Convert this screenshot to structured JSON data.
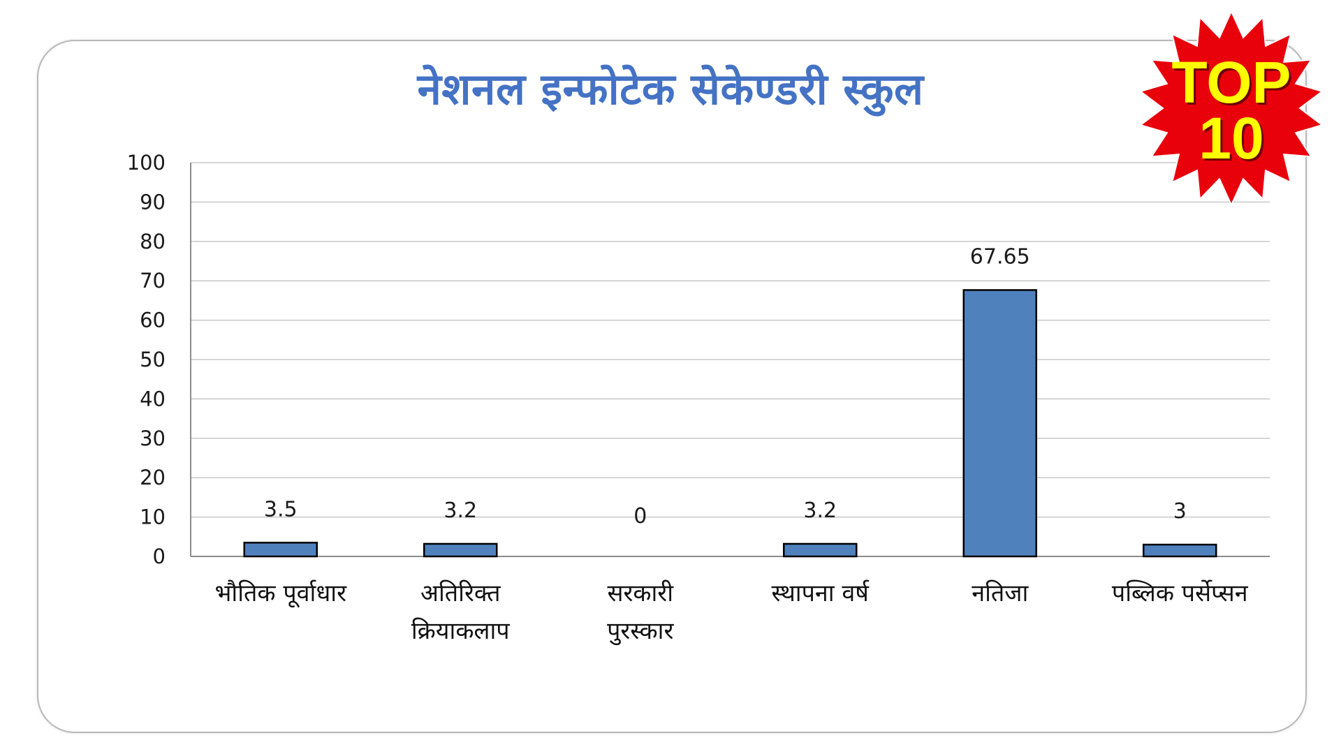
{
  "title": "नेशनल इन्फोटेक सेकेण्डरी स्कुल",
  "badge": {
    "line1": "TOP",
    "line2": "10",
    "color": "#e8000b",
    "text_color": "#ffff00"
  },
  "chart_data": {
    "type": "bar",
    "title": "नेशनल इन्फोटेक सेकेण्डरी स्कुल",
    "categories": [
      [
        "भौतिक पूर्वाधार"
      ],
      [
        "अतिरिक्त",
        "क्रियाकलाप"
      ],
      [
        "सरकारी",
        "पुरस्कार"
      ],
      [
        "स्थापना वर्ष"
      ],
      [
        "नतिजा"
      ],
      [
        "पब्लिक पर्सेप्सन"
      ]
    ],
    "values": [
      3.5,
      3.2,
      0,
      3.2,
      67.65,
      3
    ],
    "value_labels": [
      "3.5",
      "3.2",
      "0",
      "3.2",
      "67.65",
      "3"
    ],
    "ylim": [
      0,
      100
    ],
    "yticks": [
      0,
      10,
      20,
      30,
      40,
      50,
      60,
      70,
      80,
      90,
      100
    ],
    "grid": true,
    "bar_color": "#4f81bd",
    "xlabel": "",
    "ylabel": ""
  }
}
